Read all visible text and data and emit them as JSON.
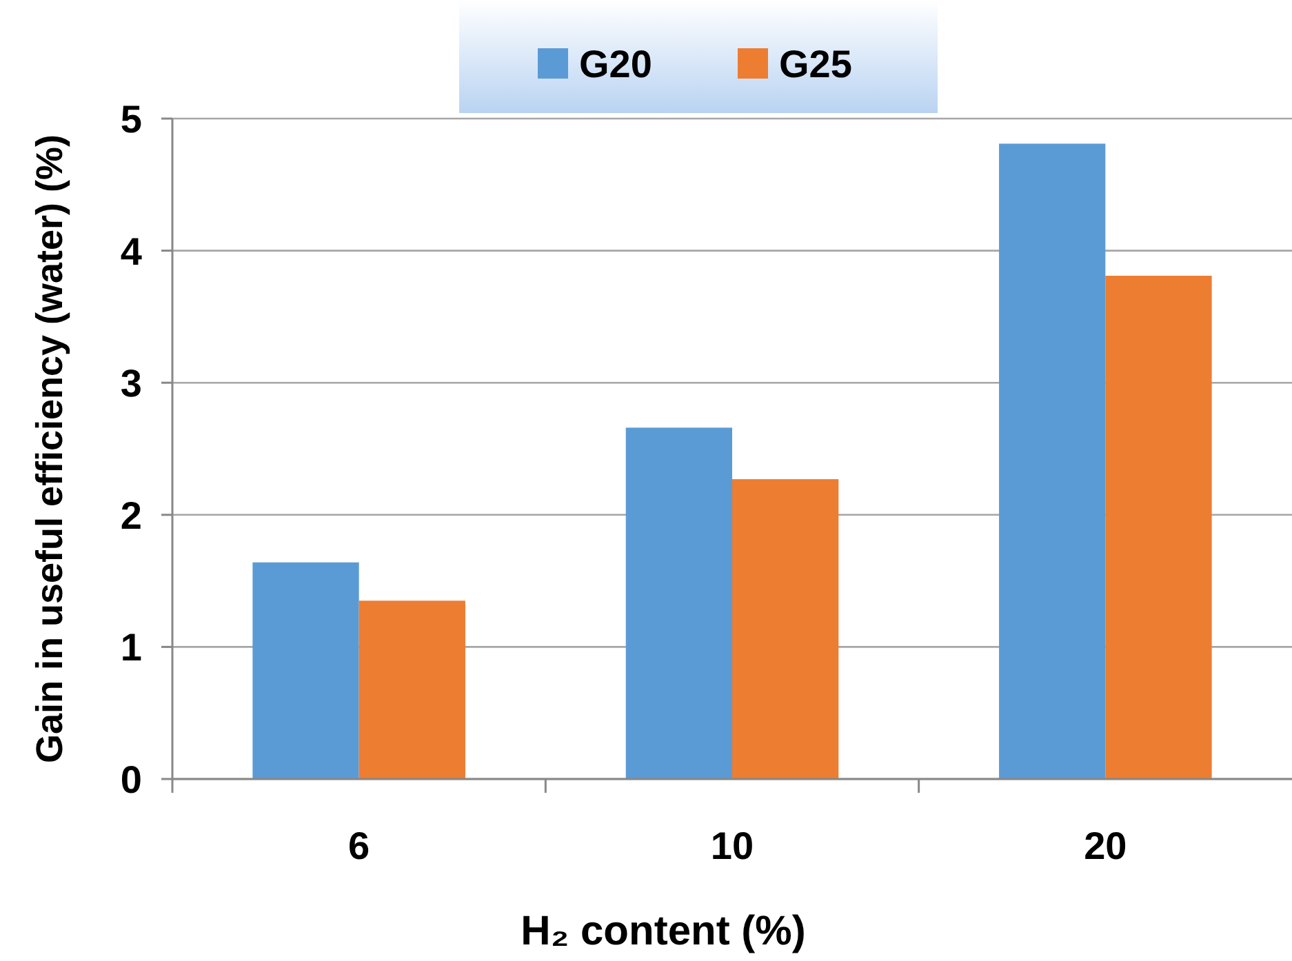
{
  "chart_data": {
    "type": "bar",
    "categories": [
      "6",
      "10",
      "20"
    ],
    "series": [
      {
        "name": "G20",
        "color": "#5b9bd5",
        "values": [
          1.64,
          2.66,
          4.81
        ]
      },
      {
        "name": "G25",
        "color": "#ed7d31",
        "values": [
          1.35,
          2.27,
          3.81
        ]
      }
    ],
    "xlabel": "H₂ content (%)",
    "ylabel": "Gain in useful efficiency (water) (%)",
    "ylim": [
      0,
      5
    ],
    "yticks": [
      0,
      1,
      2,
      3,
      4,
      5
    ],
    "grid": "y",
    "legend": "top"
  }
}
